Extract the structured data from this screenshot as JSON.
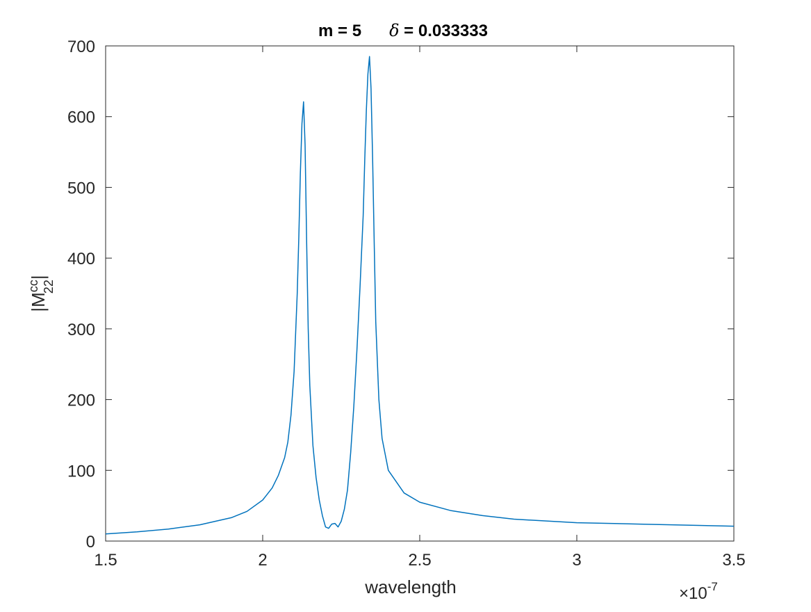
{
  "chart_data": {
    "type": "line",
    "title": {
      "m_label": "m = 5",
      "delta_symbol": "δ",
      "delta_text": " = 0.033333"
    },
    "xlabel": "wavelength",
    "ylabel": {
      "base": "|M",
      "sup": "cc",
      "sub": "22",
      "close": "|"
    },
    "x_exponent": {
      "base": "×10",
      "power": "-7"
    },
    "xlim": [
      1.5,
      3.5
    ],
    "ylim": [
      0,
      700
    ],
    "xticks": [
      1.5,
      2,
      2.5,
      3,
      3.5
    ],
    "xtick_labels": [
      "1.5",
      "2",
      "2.5",
      "3",
      "3.5"
    ],
    "yticks": [
      0,
      100,
      200,
      300,
      400,
      500,
      600,
      700
    ],
    "ytick_labels": [
      "0",
      "100",
      "200",
      "300",
      "400",
      "500",
      "600",
      "700"
    ],
    "grid": false,
    "line_color": "#0072bd",
    "series": [
      {
        "x": [
          1.5,
          1.6,
          1.7,
          1.8,
          1.9,
          1.95,
          2.0,
          2.03,
          2.05,
          2.07,
          2.08,
          2.09,
          2.1,
          2.11,
          2.115,
          2.12,
          2.125,
          2.13,
          2.135,
          2.14,
          2.145,
          2.15,
          2.16,
          2.17,
          2.18,
          2.19,
          2.2,
          2.21,
          2.22,
          2.23,
          2.24,
          2.25,
          2.26,
          2.27,
          2.28,
          2.29,
          2.3,
          2.31,
          2.32,
          2.325,
          2.33,
          2.335,
          2.34,
          2.345,
          2.35,
          2.355,
          2.36,
          2.37,
          2.38,
          2.4,
          2.45,
          2.5,
          2.6,
          2.7,
          2.8,
          3.0,
          3.2,
          3.5
        ],
        "y": [
          10,
          13,
          17,
          23,
          33,
          42,
          58,
          75,
          93,
          118,
          140,
          178,
          240,
          350,
          430,
          520,
          590,
          621,
          560,
          420,
          300,
          220,
          135,
          90,
          58,
          36,
          20,
          18,
          24,
          25,
          20,
          28,
          45,
          72,
          125,
          190,
          270,
          360,
          460,
          540,
          610,
          660,
          685,
          640,
          540,
          420,
          310,
          200,
          145,
          100,
          68,
          55,
          43,
          36,
          31,
          26,
          24,
          21
        ]
      }
    ]
  }
}
